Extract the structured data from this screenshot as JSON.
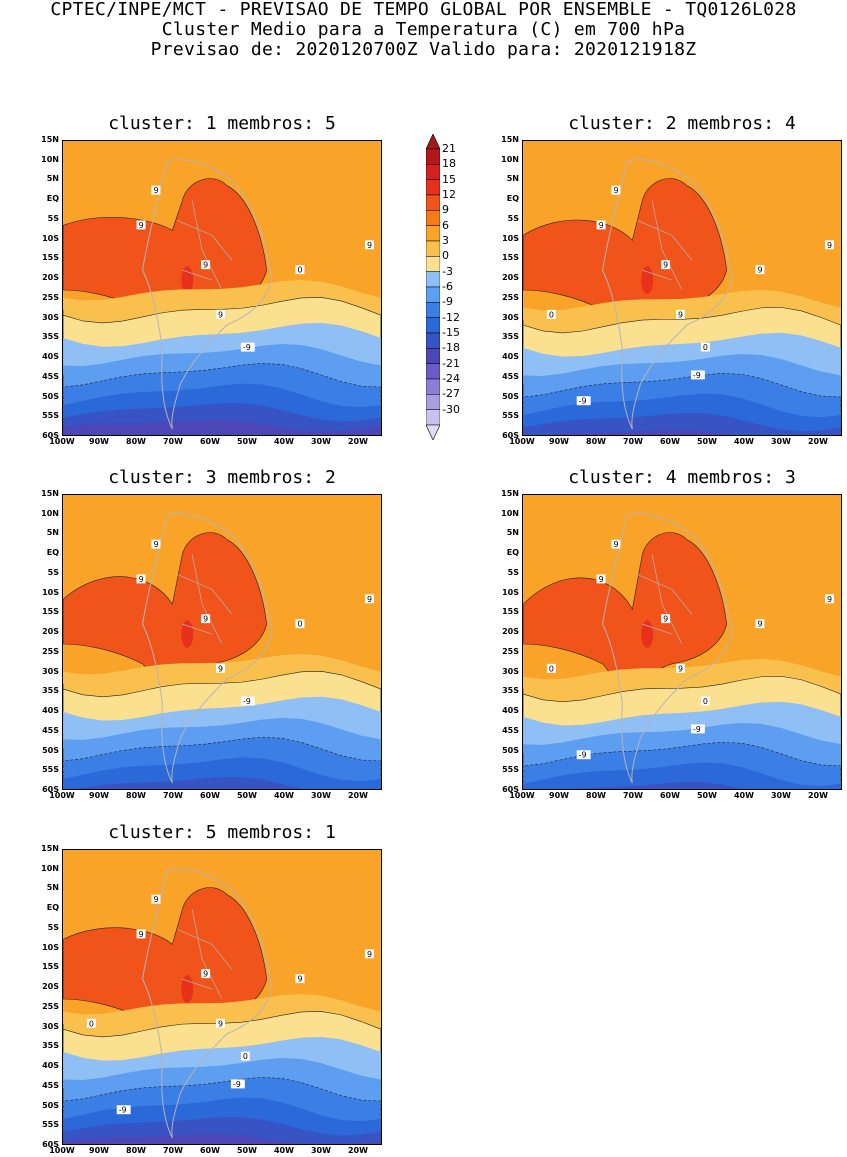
{
  "header": {
    "line1": "CPTEC/INPE/MCT - PREVISAO DE TEMPO GLOBAL POR ENSEMBLE - TQ0126L028",
    "line2": "Cluster Medio para a Temperatura (C) em 700 hPa",
    "line3": "Previsao de: 2020120700Z   Valido para: 2020121918Z"
  },
  "panels": [
    {
      "title": "cluster: 1   membros: 5"
    },
    {
      "title": "cluster: 2   membros: 4"
    },
    {
      "title": "cluster: 3   membros: 2"
    },
    {
      "title": "cluster: 4   membros: 3"
    },
    {
      "title": "cluster: 5   membros: 1"
    }
  ],
  "axes": {
    "lat_labels": [
      "15N",
      "10N",
      "5N",
      "EQ",
      "5S",
      "10S",
      "15S",
      "20S",
      "25S",
      "30S",
      "35S",
      "40S",
      "45S",
      "50S",
      "55S",
      "60S"
    ],
    "lon_labels": [
      "100W",
      "90W",
      "80W",
      "70W",
      "60W",
      "50W",
      "40W",
      "30W",
      "20W"
    ]
  },
  "colorbar": {
    "labels": [
      "21",
      "18",
      "15",
      "12",
      "9",
      "6",
      "3",
      "0",
      "-3",
      "-6",
      "-9",
      "-12",
      "-15",
      "-18",
      "-21",
      "-24",
      "-27",
      "-30"
    ],
    "colors": [
      "#b3191c",
      "#d62020",
      "#e8311d",
      "#f0541b",
      "#f77a16",
      "#f9a428",
      "#fac04e",
      "#fbe08f",
      "#8fbff5",
      "#5d9ef0",
      "#3b7fe6",
      "#2b68d8",
      "#3753c4",
      "#4c46b6",
      "#6a5cc8",
      "#8b7ed6",
      "#a99ee0",
      "#c9c2ee"
    ],
    "top_arrow_color": "#a31a1a",
    "bottom_arrow_color": "#e0dcf6"
  },
  "contour_labels": {
    "p1": [
      "9",
      "9",
      "9",
      "9",
      "9",
      "0",
      "-9"
    ],
    "p2": [
      "9",
      "9",
      "9",
      "9",
      "9",
      "9",
      "0",
      "0",
      "-9",
      "-9"
    ],
    "p3": [
      "9",
      "9",
      "9",
      "9",
      "9",
      "0",
      "-9"
    ],
    "p4": [
      "9",
      "9",
      "9",
      "9",
      "9",
      "9",
      "0",
      "0",
      "-9",
      "-9"
    ],
    "p5": [
      "9",
      "9",
      "9",
      "9",
      "9",
      "9",
      "0",
      "0",
      "-9",
      "-9"
    ]
  }
}
